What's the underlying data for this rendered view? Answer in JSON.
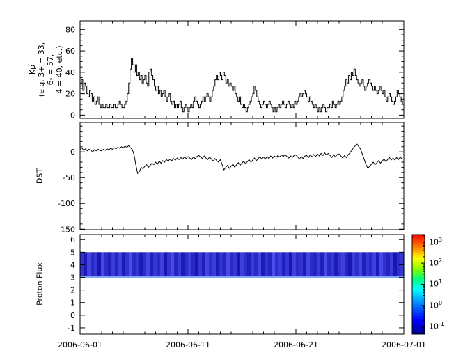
{
  "figure": {
    "background": "#ffffff",
    "trace_color": "#000000"
  },
  "x_axis": {
    "tick_labels": [
      "2006-06-01",
      "2006-06-11",
      "2006-06-21",
      "2006-07-01"
    ],
    "tick_days": [
      0,
      10,
      20,
      30
    ],
    "range_days": 30,
    "minor_tick_every_days": 1
  },
  "chart_data": [
    {
      "type": "line",
      "style": "steps",
      "ylabel_lines": [
        "Kp",
        "(e.g. 3+ = 33,",
        "6- = 57,",
        "4 = 40, etc.)"
      ],
      "x_start": "2006-06-01",
      "x_end": "2006-07-01",
      "samples_per_day": 8,
      "ylim": [
        -3,
        88
      ],
      "yticks": [
        0,
        20,
        40,
        60,
        80
      ],
      "ytick_minor_step": 5,
      "values": [
        27,
        33,
        23,
        30,
        27,
        20,
        17,
        23,
        20,
        13,
        17,
        10,
        13,
        17,
        10,
        7,
        10,
        7,
        7,
        10,
        7,
        7,
        10,
        7,
        7,
        10,
        7,
        7,
        10,
        13,
        10,
        7,
        7,
        10,
        13,
        20,
        30,
        43,
        53,
        47,
        40,
        47,
        37,
        40,
        33,
        37,
        30,
        33,
        37,
        30,
        27,
        40,
        43,
        37,
        33,
        27,
        23,
        27,
        20,
        23,
        17,
        20,
        23,
        17,
        13,
        17,
        20,
        13,
        10,
        13,
        7,
        10,
        7,
        10,
        13,
        7,
        3,
        7,
        10,
        7,
        3,
        7,
        10,
        7,
        13,
        17,
        13,
        10,
        7,
        10,
        13,
        17,
        13,
        17,
        20,
        17,
        13,
        17,
        23,
        27,
        33,
        37,
        33,
        40,
        37,
        33,
        40,
        37,
        30,
        33,
        27,
        30,
        27,
        23,
        27,
        20,
        17,
        13,
        17,
        10,
        7,
        10,
        7,
        3,
        7,
        10,
        13,
        17,
        20,
        27,
        23,
        17,
        13,
        10,
        7,
        10,
        13,
        10,
        7,
        10,
        13,
        10,
        7,
        3,
        7,
        3,
        7,
        10,
        7,
        10,
        13,
        10,
        7,
        10,
        13,
        10,
        7,
        10,
        7,
        13,
        10,
        13,
        17,
        20,
        17,
        20,
        23,
        20,
        17,
        13,
        17,
        13,
        10,
        7,
        10,
        7,
        3,
        7,
        3,
        7,
        10,
        7,
        3,
        7,
        7,
        10,
        7,
        13,
        10,
        7,
        10,
        13,
        10,
        13,
        17,
        23,
        27,
        33,
        30,
        37,
        33,
        40,
        37,
        43,
        37,
        33,
        30,
        27,
        30,
        33,
        27,
        23,
        27,
        30,
        33,
        30,
        27,
        23,
        27,
        23,
        20,
        23,
        27,
        23,
        20,
        23,
        17,
        13,
        17,
        20,
        17,
        13,
        10,
        13,
        17,
        23,
        20,
        17,
        13,
        10
      ]
    },
    {
      "type": "line",
      "style": "linear",
      "ylabel": "DST",
      "x_start": "2006-06-01",
      "x_end": "2006-07-01",
      "samples_per_day": 6,
      "ylim": [
        -151,
        57
      ],
      "yticks": [
        0,
        -50,
        -100,
        -150
      ],
      "ytick_minor_step": 10,
      "values": [
        5,
        8,
        3,
        6,
        2,
        5,
        3,
        0,
        4,
        2,
        5,
        3,
        2,
        5,
        3,
        6,
        4,
        7,
        5,
        8,
        6,
        9,
        7,
        10,
        8,
        11,
        9,
        12,
        8,
        5,
        -5,
        -25,
        -42,
        -38,
        -30,
        -33,
        -28,
        -25,
        -30,
        -26,
        -22,
        -25,
        -20,
        -24,
        -18,
        -22,
        -17,
        -20,
        -15,
        -18,
        -14,
        -17,
        -13,
        -16,
        -12,
        -15,
        -11,
        -14,
        -10,
        -13,
        -9,
        -12,
        -15,
        -10,
        -13,
        -9,
        -7,
        -10,
        -13,
        -8,
        -12,
        -15,
        -10,
        -14,
        -18,
        -13,
        -17,
        -20,
        -15,
        -25,
        -35,
        -30,
        -26,
        -32,
        -28,
        -24,
        -30,
        -25,
        -21,
        -26,
        -22,
        -18,
        -23,
        -19,
        -15,
        -20,
        -16,
        -12,
        -17,
        -13,
        -9,
        -14,
        -10,
        -14,
        -9,
        -13,
        -8,
        -12,
        -8,
        -11,
        -7,
        -10,
        -6,
        -9,
        -5,
        -9,
        -12,
        -8,
        -11,
        -7,
        -6,
        -10,
        -14,
        -9,
        -13,
        -8,
        -7,
        -11,
        -6,
        -10,
        -5,
        -9,
        -4,
        -8,
        -3,
        -7,
        -2,
        -6,
        -3,
        -7,
        -11,
        -6,
        -10,
        -5,
        -4,
        -8,
        -12,
        -7,
        -11,
        -6,
        -2,
        3,
        8,
        12,
        15,
        10,
        5,
        -5,
        -15,
        -25,
        -32,
        -28,
        -24,
        -20,
        -25,
        -21,
        -17,
        -22,
        -18,
        -14,
        -19,
        -15,
        -11,
        -16,
        -12,
        -16,
        -11,
        -15,
        -10,
        -14
      ]
    },
    {
      "type": "heatmap",
      "ylabel": "Proton Flux",
      "x_start": "2006-06-01",
      "x_end": "2006-07-01",
      "ylim": [
        -1.5,
        6.4
      ],
      "yticks": [
        6,
        5,
        4,
        3,
        2,
        1,
        0,
        -1
      ],
      "band": {
        "y_min": 3.0,
        "y_max": 5.0,
        "approx_flux": 0.15,
        "base_color": "#0000a0",
        "fringe_color": "#7fa4f8",
        "stripe_levels": [
          0.55,
          0.3,
          0.75,
          0.45,
          0.6,
          0.25,
          0.8,
          0.5,
          0.35,
          0.65,
          0.4,
          0.7,
          0.3,
          0.55,
          0.85,
          0.45,
          0.6,
          0.3,
          0.5,
          0.75,
          0.35,
          0.6,
          0.45,
          0.7,
          0.25,
          0.55,
          0.8,
          0.4,
          0.65,
          0.3,
          0.5,
          0.7,
          0.45,
          0.25,
          0.6,
          0.35,
          0.75,
          0.5,
          0.65,
          0.3,
          0.55,
          0.4,
          0.8,
          0.45,
          0.6,
          0.25,
          0.7,
          0.5,
          0.35,
          0.65,
          0.45,
          0.75,
          0.3,
          0.55,
          0.4,
          0.85,
          0.5,
          0.65,
          0.35,
          0.6,
          0.25,
          0.7,
          0.45,
          0.55,
          0.3,
          0.75,
          0.5,
          0.4,
          0.65,
          0.35,
          0.8,
          0.45,
          0.6,
          0.3,
          0.55,
          0.7,
          0.4,
          0.25,
          0.65,
          0.5,
          0.75,
          0.35,
          0.6,
          0.45,
          0.7,
          0.3,
          0.8,
          0.55,
          0.4,
          0.65,
          0.25,
          0.5,
          0.6
        ]
      },
      "colorbar": {
        "scale": "log",
        "log_range": [
          -1.35,
          3.35
        ],
        "tick_log_values": [
          3,
          2,
          1,
          0,
          -1
        ],
        "tick_labels": [
          {
            "base": "10",
            "exp": "3"
          },
          {
            "base": "10",
            "exp": "2"
          },
          {
            "base": "10",
            "exp": "1"
          },
          {
            "base": "10",
            "exp": "0"
          },
          {
            "base": "10",
            "exp": "-1"
          }
        ],
        "stops": [
          [
            "0%",
            "#000090"
          ],
          [
            "14%",
            "#0000ff"
          ],
          [
            "30%",
            "#0080ff"
          ],
          [
            "45%",
            "#00ffff"
          ],
          [
            "55%",
            "#00ff80"
          ],
          [
            "65%",
            "#80ff00"
          ],
          [
            "76%",
            "#ffff00"
          ],
          [
            "87%",
            "#ff8000"
          ],
          [
            "100%",
            "#ff0000"
          ]
        ]
      }
    }
  ]
}
